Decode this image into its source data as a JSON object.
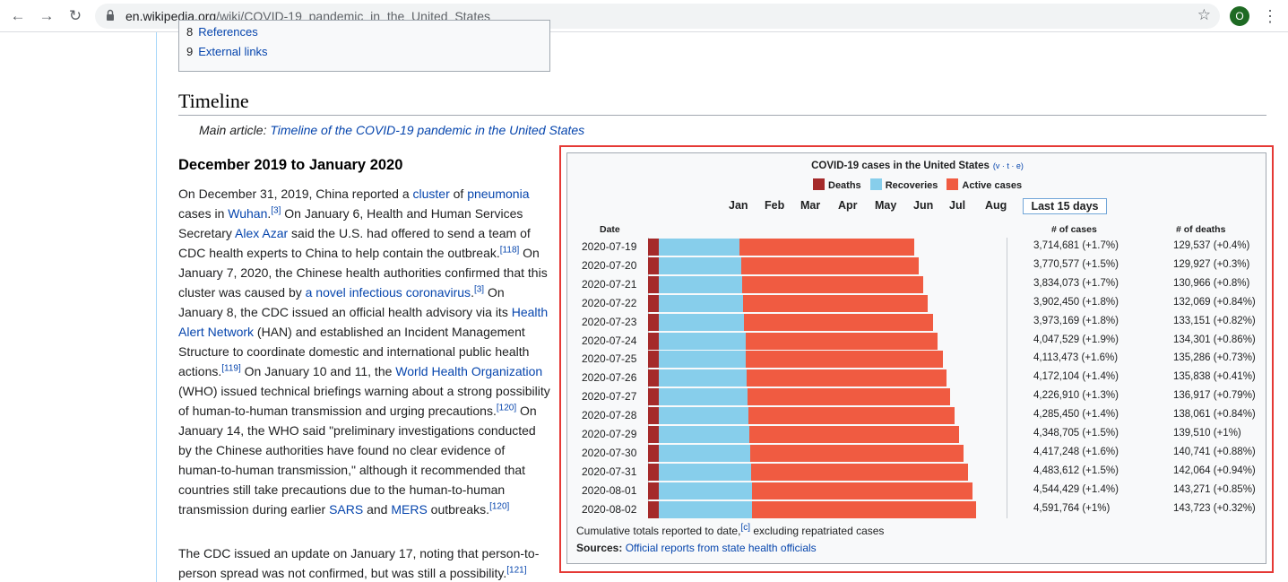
{
  "browser": {
    "url_host": "en.wikipedia.org",
    "url_path": "/wiki/COVID-19_pandemic_in_the_United_States",
    "profile_initial": "O",
    "icons": [
      "back-arrow-icon",
      "forward-arrow-icon",
      "reload-icon",
      "lock-icon",
      "star-icon",
      "kebab-menu-icon"
    ]
  },
  "toc": {
    "items": [
      {
        "num": "8",
        "label": "References"
      },
      {
        "num": "9",
        "label": "External links"
      }
    ]
  },
  "section": {
    "heading": "Timeline",
    "hatnote_prefix": "Main article: ",
    "hatnote_link": "Timeline of the COVID-19 pandemic in the United States",
    "subheading": "December 2019 to January 2020"
  },
  "paragraphs": {
    "p1": [
      {
        "t": "On December 31, 2019, China reported a "
      },
      {
        "link": "cluster"
      },
      {
        "t": " of "
      },
      {
        "link": "pneumonia"
      },
      {
        "t": " cases in "
      },
      {
        "link": "Wuhan"
      },
      {
        "t": "."
      },
      {
        "sup": "[3]"
      },
      {
        "t": " On January 6, Health and Human Services Secretary "
      },
      {
        "link": "Alex Azar"
      },
      {
        "t": " said the U.S. had offered to send a team of CDC health experts to China to help contain the outbreak."
      },
      {
        "sup": "[118]"
      },
      {
        "t": " On January 7, 2020, the Chinese health authorities confirmed that this cluster was caused by "
      },
      {
        "link": "a novel infectious coronavirus"
      },
      {
        "t": "."
      },
      {
        "sup": "[3]"
      },
      {
        "t": " On January 8, the CDC issued an official health advisory via its "
      },
      {
        "link": "Health Alert Network"
      },
      {
        "t": " (HAN) and established an Incident Management Structure to coordinate domestic and international public health actions."
      },
      {
        "sup": "[119]"
      },
      {
        "t": " On January 10 and 11, the "
      },
      {
        "link": "World Health Organization"
      },
      {
        "t": " (WHO) issued technical briefings warning about a strong possibility of human-to-human transmission and urging precautions."
      },
      {
        "sup": "[120]"
      },
      {
        "t": " On January 14, the WHO said \"preliminary investigations conducted by the Chinese authorities have found no clear evidence of human-to-human transmission,\" although it recommended that countries still take precautions due to the human-to-human transmission during earlier "
      },
      {
        "link": "SARS"
      },
      {
        "t": " and "
      },
      {
        "link": "MERS"
      },
      {
        "t": " outbreaks."
      },
      {
        "sup": "[120]"
      }
    ],
    "p2": [
      {
        "t": "The CDC issued an update on January 17, noting that person-to-person spread was not confirmed, but was still a possibility."
      },
      {
        "sup": "[121]"
      }
    ]
  },
  "chart": {
    "title": "COVID-19 cases in the United States",
    "vte": "v · t · e",
    "legend": [
      {
        "label": "Deaths",
        "color": "#a52a2a"
      },
      {
        "label": "Recoveries",
        "color": "#87ceeb"
      },
      {
        "label": "Active cases",
        "color": "#f05b41"
      }
    ],
    "months": [
      "Jan",
      "Feb",
      "Mar",
      "Apr",
      "May",
      "Jun",
      "Jul",
      "Aug"
    ],
    "last15_label": "Last 15 days",
    "col_date": "Date",
    "col_cases": "# of cases",
    "col_deaths": "# of deaths",
    "footnote_text": "Cumulative totals reported to date,",
    "footnote_sup": "[c]",
    "footnote_tail": " excluding repatriated cases",
    "sources_label": "Sources:",
    "sources_link": "Official reports from state health officials"
  },
  "chart_data": {
    "type": "bar",
    "title": "COVID-19 cases in the United States",
    "stacked": true,
    "orientation": "horizontal",
    "categories": [
      "2020-07-19",
      "2020-07-20",
      "2020-07-21",
      "2020-07-22",
      "2020-07-23",
      "2020-07-24",
      "2020-07-25",
      "2020-07-26",
      "2020-07-27",
      "2020-07-28",
      "2020-07-29",
      "2020-07-30",
      "2020-07-31",
      "2020-08-01",
      "2020-08-02"
    ],
    "series": [
      {
        "name": "Deaths",
        "values": [
          129537,
          129927,
          130966,
          132069,
          133151,
          134301,
          135286,
          135838,
          136917,
          138061,
          139510,
          140741,
          142064,
          143271,
          143723
        ]
      },
      {
        "name": "Recoveries",
        "values": [
          1133000,
          1150000,
          1166000,
          1180000,
          1190000,
          1215000,
          1225000,
          1236000,
          1250000,
          1262000,
          1272000,
          1286000,
          1296000,
          1306000,
          1313000
        ]
      },
      {
        "name": "Active cases",
        "values": [
          2452144,
          2490650,
          2537107,
          2590381,
          2650018,
          2698228,
          2753187,
          2800266,
          2839993,
          2885389,
          2937195,
          2990507,
          3045548,
          3095158,
          3135041
        ]
      }
    ],
    "cases_labels": [
      "3,714,681 (+1.7%)",
      "3,770,577 (+1.5%)",
      "3,834,073 (+1.7%)",
      "3,902,450 (+1.8%)",
      "3,973,169 (+1.8%)",
      "4,047,529 (+1.9%)",
      "4,113,473 (+1.6%)",
      "4,172,104 (+1.4%)",
      "4,226,910 (+1.3%)",
      "4,285,450 (+1.4%)",
      "4,348,705 (+1.5%)",
      "4,417,248 (+1.6%)",
      "4,483,612 (+1.5%)",
      "4,544,429 (+1.4%)",
      "4,591,764 (+1%)"
    ],
    "deaths_labels": [
      "129,537 (+0.4%)",
      "129,927 (+0.3%)",
      "130,966 (+0.8%)",
      "132,069 (+0.84%)",
      "133,151 (+0.82%)",
      "134,301 (+0.86%)",
      "135,286 (+0.73%)",
      "135,838 (+0.41%)",
      "136,917 (+0.79%)",
      "138,061 (+0.84%)",
      "139,510 (+1%)",
      "140,741 (+0.88%)",
      "142,064 (+0.94%)",
      "143,271 (+0.85%)",
      "143,723 (+0.32%)"
    ],
    "legend_position": "top"
  }
}
